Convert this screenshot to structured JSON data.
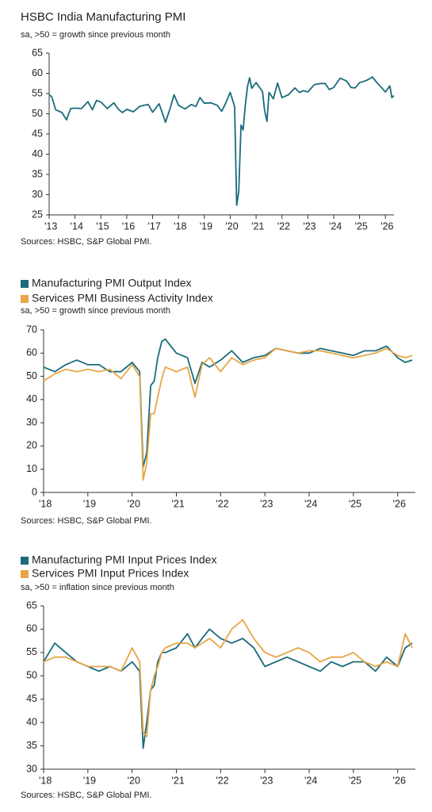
{
  "chart_data": [
    {
      "type": "line",
      "title": "HSBC India Manufacturing PMI",
      "subtitle": "sa, >50 = growth since previous month",
      "source": "Sources: HSBC, S&P Global PMI.",
      "color": "#1a6b7c",
      "x": [
        2013,
        2013.1,
        2013.25,
        2013.5,
        2013.67,
        2013.83,
        2014,
        2014.25,
        2014.5,
        2014.67,
        2014.83,
        2015,
        2015.25,
        2015.5,
        2015.67,
        2015.83,
        2016,
        2016.25,
        2016.5,
        2016.67,
        2016.83,
        2017,
        2017.25,
        2017.5,
        2017.67,
        2017.83,
        2018,
        2018.25,
        2018.5,
        2018.67,
        2018.83,
        2019,
        2019.25,
        2019.5,
        2019.67,
        2019.83,
        2020,
        2020.17,
        2020.25,
        2020.33,
        2020.42,
        2020.5,
        2020.58,
        2020.67,
        2020.75,
        2020.83,
        2021,
        2021.25,
        2021.33,
        2021.42,
        2021.5,
        2021.67,
        2021.83,
        2022,
        2022.25,
        2022.5,
        2022.67,
        2022.83,
        2023,
        2023.25,
        2023.5,
        2023.67,
        2023.83,
        2024,
        2024.25,
        2024.5,
        2024.67,
        2024.83,
        2025,
        2025.25,
        2025.5,
        2025.67,
        2025.83,
        2026,
        2026.17,
        2026.25,
        2026.33
      ],
      "values": [
        54.7,
        54.2,
        51.0,
        50.3,
        48.5,
        51.3,
        51.4,
        51.3,
        53.0,
        51.0,
        53.3,
        52.9,
        51.3,
        52.7,
        51.2,
        50.3,
        51.1,
        50.5,
        51.8,
        52.1,
        52.3,
        50.4,
        52.5,
        47.9,
        51.2,
        54.7,
        52.1,
        51.2,
        52.3,
        51.8,
        54.0,
        52.6,
        52.7,
        52.1,
        50.6,
        52.7,
        55.3,
        51.8,
        27.4,
        30.8,
        47.2,
        46.0,
        52.0,
        56.8,
        58.9,
        56.3,
        57.7,
        55.5,
        50.8,
        48.1,
        55.3,
        53.7,
        57.6,
        54.0,
        54.7,
        56.4,
        55.3,
        55.7,
        55.4,
        57.2,
        57.5,
        57.5,
        56.0,
        56.5,
        58.8,
        58.1,
        56.5,
        56.4,
        57.7,
        58.2,
        59.1,
        57.7,
        56.6,
        55.4,
        56.9,
        54.0,
        54.5
      ],
      "xlim": [
        2013,
        2026.33
      ],
      "xticks": [
        {
          "value": 2013,
          "label": "'13"
        },
        {
          "value": 2014,
          "label": "'14"
        },
        {
          "value": 2015,
          "label": "'15"
        },
        {
          "value": 2016,
          "label": "'16"
        },
        {
          "value": 2017,
          "label": "'17"
        },
        {
          "value": 2018,
          "label": "'18"
        },
        {
          "value": 2019,
          "label": "'19"
        },
        {
          "value": 2020,
          "label": "'20"
        },
        {
          "value": 2021,
          "label": "'21"
        },
        {
          "value": 2022,
          "label": "'22"
        },
        {
          "value": 2023,
          "label": "'23"
        },
        {
          "value": 2024,
          "label": "'24"
        },
        {
          "value": 2025,
          "label": "'25"
        },
        {
          "value": 2026,
          "label": "'26"
        }
      ],
      "ylim": [
        25,
        65
      ],
      "yticks": [
        25,
        30,
        35,
        40,
        45,
        50,
        55,
        60,
        65
      ]
    },
    {
      "type": "line",
      "subtitle": "sa, >50 = growth since previous month",
      "source": "Sources: HSBC, S&P Global PMI.",
      "x": [
        2018,
        2018.25,
        2018.5,
        2018.75,
        2019,
        2019.25,
        2019.5,
        2019.75,
        2020,
        2020.17,
        2020.25,
        2020.33,
        2020.42,
        2020.5,
        2020.58,
        2020.67,
        2020.75,
        2021,
        2021.25,
        2021.42,
        2021.58,
        2021.75,
        2022,
        2022.25,
        2022.5,
        2022.75,
        2023,
        2023.25,
        2023.5,
        2023.75,
        2024,
        2024.25,
        2024.5,
        2024.75,
        2025,
        2025.25,
        2025.5,
        2025.75,
        2026,
        2026.17,
        2026.33
      ],
      "series": [
        {
          "name": "Manufacturing PMI Output Index",
          "color": "#1a6b7c",
          "values": [
            54,
            52,
            55,
            57,
            55,
            55,
            52,
            52,
            56,
            52,
            11,
            17,
            46,
            48,
            58,
            65,
            66,
            60,
            58,
            47,
            56,
            54,
            57,
            61,
            56,
            58,
            59,
            62,
            61,
            60,
            60,
            62,
            61,
            60,
            59,
            61,
            61,
            63,
            58,
            56,
            57
          ]
        },
        {
          "name": "Services PMI Business Activity Index",
          "color": "#e8a545",
          "values": [
            48,
            51,
            53,
            52,
            53,
            52,
            53,
            49,
            55,
            50,
            5.4,
            12.6,
            33.7,
            34,
            41,
            49,
            54,
            52,
            54,
            41,
            55,
            58,
            52,
            58,
            55,
            57,
            58,
            62,
            61,
            60,
            61,
            61,
            60,
            59,
            58,
            59,
            60,
            62,
            59,
            58,
            59
          ]
        }
      ],
      "xlim": [
        2018,
        2026.4
      ],
      "xticks": [
        {
          "value": 2018,
          "label": "'18"
        },
        {
          "value": 2019,
          "label": "'19"
        },
        {
          "value": 2020,
          "label": "'20"
        },
        {
          "value": 2021,
          "label": "'21"
        },
        {
          "value": 2022,
          "label": "'22"
        },
        {
          "value": 2023,
          "label": "'23"
        },
        {
          "value": 2024,
          "label": "'24"
        },
        {
          "value": 2025,
          "label": "'25"
        },
        {
          "value": 2026,
          "label": "'26"
        }
      ],
      "ylim": [
        0,
        70
      ],
      "yticks": [
        0,
        10,
        20,
        30,
        40,
        50,
        60,
        70
      ]
    },
    {
      "type": "line",
      "subtitle": "sa, >50 = inflation since previous month",
      "source": "Sources: HSBC, S&P Global PMI.",
      "x": [
        2018,
        2018.25,
        2018.5,
        2018.75,
        2019,
        2019.25,
        2019.5,
        2019.75,
        2020,
        2020.17,
        2020.25,
        2020.33,
        2020.42,
        2020.5,
        2020.58,
        2020.67,
        2020.75,
        2021,
        2021.25,
        2021.42,
        2021.58,
        2021.75,
        2022,
        2022.25,
        2022.5,
        2022.75,
        2023,
        2023.25,
        2023.5,
        2023.75,
        2024,
        2024.25,
        2024.5,
        2024.75,
        2025,
        2025.25,
        2025.5,
        2025.75,
        2026,
        2026.17,
        2026.33
      ],
      "series": [
        {
          "name": "Manufacturing PMI Input Prices Index",
          "color": "#1a6b7c",
          "values": [
            53,
            57,
            55,
            53,
            52,
            51,
            52,
            51,
            53,
            51,
            34.5,
            40,
            47,
            48,
            53,
            55,
            55,
            56,
            59,
            56,
            58,
            60,
            58,
            57,
            58,
            56,
            52,
            53,
            54,
            53,
            52,
            51,
            53,
            52,
            53,
            53,
            51,
            54,
            52,
            56,
            57
          ]
        },
        {
          "name": "Services PMI Input Prices Index",
          "color": "#e8a545",
          "values": [
            53,
            54,
            54,
            53,
            52,
            52,
            52,
            51,
            56,
            53,
            38,
            37,
            47,
            50,
            52,
            55,
            56,
            57,
            57,
            56,
            57,
            58,
            56,
            60,
            62,
            58,
            55,
            54,
            55,
            56,
            55,
            53,
            54,
            54,
            55,
            53,
            52,
            53,
            52,
            59,
            56
          ]
        }
      ],
      "xlim": [
        2018,
        2026.4
      ],
      "xticks": [
        {
          "value": 2018,
          "label": "'18"
        },
        {
          "value": 2019,
          "label": "'19"
        },
        {
          "value": 2020,
          "label": "'20"
        },
        {
          "value": 2021,
          "label": "'21"
        },
        {
          "value": 2022,
          "label": "'22"
        },
        {
          "value": 2023,
          "label": "'23"
        },
        {
          "value": 2024,
          "label": "'24"
        },
        {
          "value": 2025,
          "label": "'25"
        },
        {
          "value": 2026,
          "label": "'26"
        }
      ],
      "ylim": [
        30,
        65
      ],
      "yticks": [
        30,
        35,
        40,
        45,
        50,
        55,
        60,
        65
      ]
    }
  ]
}
